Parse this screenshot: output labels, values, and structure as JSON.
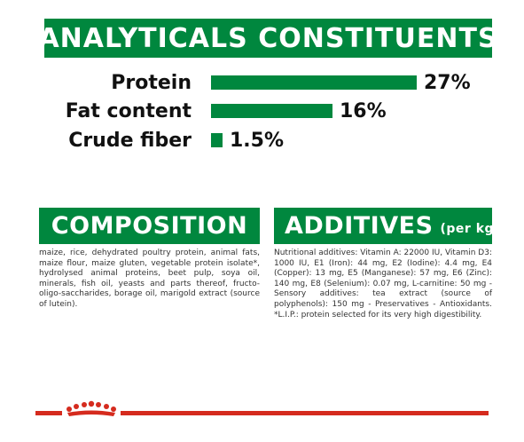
{
  "analytical": {
    "title": "ANALYTICALS CONSTITUENTS",
    "rows": [
      {
        "label": "Protein",
        "value": "27%",
        "fraction": 0.27
      },
      {
        "label": "Fat content",
        "value": "16%",
        "fraction": 0.16
      },
      {
        "label": "Crude fiber",
        "value": "1.5%",
        "fraction": 0.015
      }
    ]
  },
  "composition": {
    "title": "COMPOSITION",
    "text": "maize, rice, dehydrated poultry protein, animal fats, maize flour, maize gluten, vegetable protein isolate*, hydrolysed animal proteins, beet pulp, soya oil, minerals, fish oil, yeasts and parts thereof, fructo-oligo-saccharides, borage oil, marigold extract (source of lutein)."
  },
  "additives": {
    "title": "ADDITIVES",
    "subtitle": "(per kg)",
    "text": "Nutritional additives: Vitamin A: 22000 IU, Vitamin D3: 1000 IU, E1 (Iron): 44 mg, E2 (Iodine): 4.4 mg, E4 (Copper): 13 mg, E5 (Manganese): 57 mg, E6 (Zinc): 140 mg, E8 (Selenium): 0.07 mg, L-carnitine: 50 mg - Sensory additives: tea extract (source of polyphenols): 150 mg - Preservatives - Antioxidants. *L.I.P.: protein selected for its very high digestibility."
  },
  "colors": {
    "green": "#00873e",
    "red": "#d52b1e"
  },
  "footer": {
    "logo_icon": "crown-icon"
  }
}
